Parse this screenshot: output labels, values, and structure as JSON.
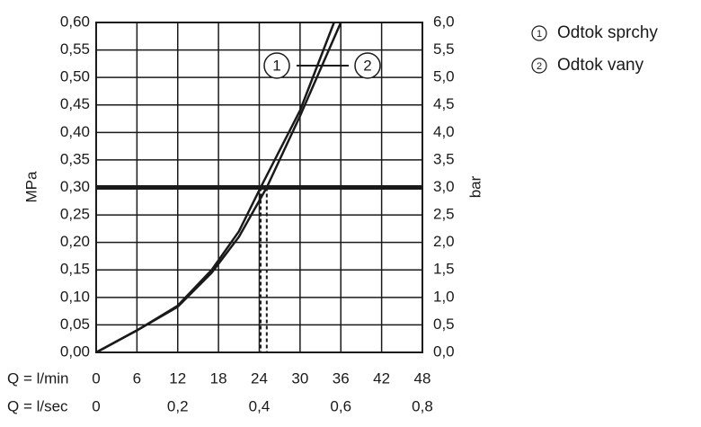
{
  "chart_data": {
    "type": "line",
    "y_label": "MPa",
    "y2_label": "bar",
    "x_row_label": "Q = l/min",
    "x2_row_label": "Q = l/sec",
    "xlim": [
      0,
      48
    ],
    "xticks": [
      0,
      6,
      12,
      18,
      24,
      30,
      36,
      42,
      48
    ],
    "x2lim": [
      0,
      0.8
    ],
    "x2ticks": [
      0,
      {
        "value": 0.2,
        "label": "0,2"
      },
      {
        "value": 0.4,
        "label": "0,4"
      },
      {
        "value": 0.6,
        "label": "0,6"
      },
      {
        "value": 0.8,
        "label": "0,8"
      }
    ],
    "ylim": [
      0,
      0.6
    ],
    "yticks": [
      {
        "value": 0,
        "label": "0,00"
      },
      {
        "value": 0.05,
        "label": "0,05"
      },
      {
        "value": 0.1,
        "label": "0,10"
      },
      {
        "value": 0.15,
        "label": "0,15"
      },
      {
        "value": 0.2,
        "label": "0,20"
      },
      {
        "value": 0.25,
        "label": "0,25"
      },
      {
        "value": 0.3,
        "label": "0,30"
      },
      {
        "value": 0.35,
        "label": "0,35"
      },
      {
        "value": 0.4,
        "label": "0,40"
      },
      {
        "value": 0.45,
        "label": "0,45"
      },
      {
        "value": 0.5,
        "label": "0,50"
      },
      {
        "value": 0.55,
        "label": "0,55"
      },
      {
        "value": 0.6,
        "label": "0,60"
      }
    ],
    "y2lim": [
      0,
      6
    ],
    "y2ticks": [
      {
        "value": 0,
        "label": "0,0"
      },
      {
        "value": 0.5,
        "label": "0,5"
      },
      {
        "value": 1,
        "label": "1,0"
      },
      {
        "value": 1.5,
        "label": "1,5"
      },
      {
        "value": 2,
        "label": "2,0"
      },
      {
        "value": 2.5,
        "label": "2,5"
      },
      {
        "value": 3,
        "label": "3,0"
      },
      {
        "value": 3.5,
        "label": "3,5"
      },
      {
        "value": 4,
        "label": "4,0"
      },
      {
        "value": 4.5,
        "label": "4,5"
      },
      {
        "value": 5,
        "label": "5,0"
      },
      {
        "value": 5.5,
        "label": "5,5"
      },
      {
        "value": 6,
        "label": "6,0"
      }
    ],
    "grid": true,
    "reference_y": 0.3,
    "drop_x": [
      24.2,
      25.1
    ],
    "series": [
      {
        "name": "Odtok sprchy",
        "label": "1",
        "color": "#1a1a1a",
        "x": [
          0,
          6,
          12,
          17,
          21,
          24.2,
          30,
          35
        ],
        "values": [
          0,
          0.04,
          0.085,
          0.15,
          0.22,
          0.3,
          0.44,
          0.6
        ]
      },
      {
        "name": "Odtok vany",
        "label": "2",
        "color": "#1a1a1a",
        "x": [
          0,
          6,
          12,
          17,
          21,
          25.1,
          30,
          36
        ],
        "values": [
          0,
          0.04,
          0.083,
          0.145,
          0.21,
          0.3,
          0.43,
          0.6
        ]
      }
    ]
  }
}
